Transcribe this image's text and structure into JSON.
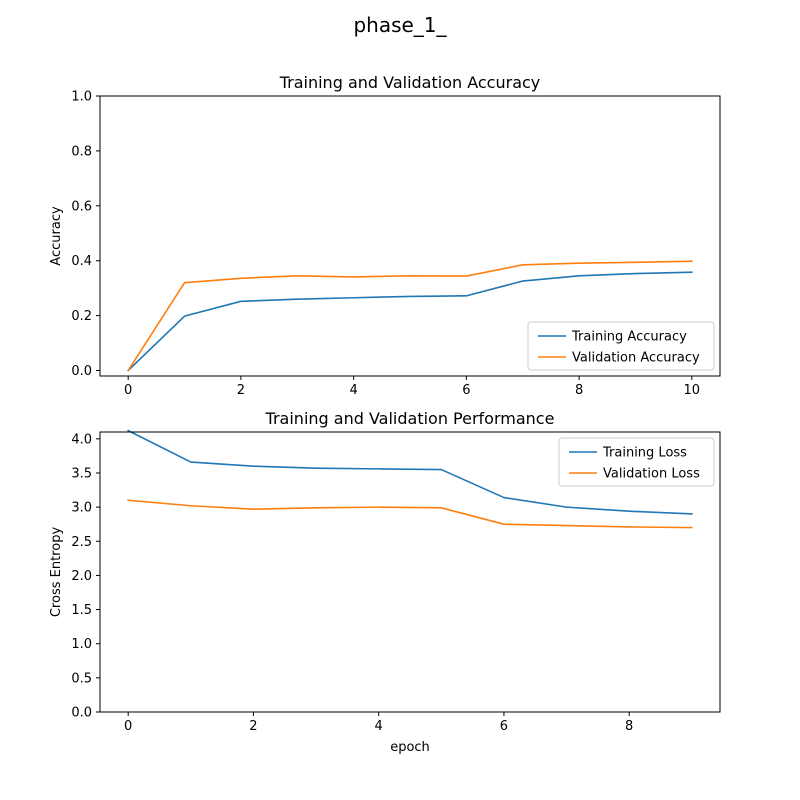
{
  "figure_title": "phase_1_",
  "colors": {
    "series_1": "#1f77b4",
    "series_2": "#ff7f0e",
    "axes": "#000000",
    "legend_border": "#cccccc"
  },
  "chart_data": [
    {
      "type": "line",
      "title": "Training and Validation Accuracy",
      "xlabel": "",
      "ylabel": "Accuracy",
      "xlim": [
        -0.5,
        10.5
      ],
      "ylim": [
        -0.02,
        1.0
      ],
      "xticks": [
        0,
        2,
        4,
        6,
        8,
        10
      ],
      "yticks": [
        0.0,
        0.2,
        0.4,
        0.6,
        0.8,
        1.0
      ],
      "ytick_labels": [
        "0.0",
        "0.2",
        "0.4",
        "0.6",
        "0.8",
        "1.0"
      ],
      "legend_position": "lower-right",
      "grid": false,
      "x": [
        0,
        1,
        2,
        3,
        4,
        5,
        6,
        7,
        8,
        9,
        10
      ],
      "series": [
        {
          "name": "Training Accuracy",
          "color": "#1f77b4",
          "values": [
            0.0,
            0.198,
            0.252,
            0.26,
            0.265,
            0.27,
            0.272,
            0.326,
            0.345,
            0.353,
            0.358
          ]
        },
        {
          "name": "Validation Accuracy",
          "color": "#ff7f0e",
          "values": [
            0.0,
            0.32,
            0.336,
            0.345,
            0.341,
            0.345,
            0.344,
            0.385,
            0.391,
            0.394,
            0.398
          ]
        }
      ]
    },
    {
      "type": "line",
      "title": "Training and Validation Performance",
      "xlabel": "epoch",
      "ylabel": "Cross Entropy",
      "xlim": [
        -0.45,
        9.45
      ],
      "ylim": [
        0.0,
        4.1
      ],
      "xticks": [
        0,
        2,
        4,
        6,
        8
      ],
      "yticks": [
        0.0,
        0.5,
        1.0,
        1.5,
        2.0,
        2.5,
        3.0,
        3.5,
        4.0
      ],
      "ytick_labels": [
        "0.0",
        "0.5",
        "1.0",
        "1.5",
        "2.0",
        "2.5",
        "3.0",
        "3.5",
        "4.0"
      ],
      "legend_position": "upper-right",
      "grid": false,
      "x": [
        0,
        1,
        2,
        3,
        4,
        5,
        6,
        7,
        8,
        9
      ],
      "series": [
        {
          "name": "Training Loss",
          "color": "#1f77b4",
          "values": [
            4.12,
            3.66,
            3.6,
            3.57,
            3.56,
            3.55,
            3.14,
            3.0,
            2.94,
            2.9
          ]
        },
        {
          "name": "Validation Loss",
          "color": "#ff7f0e",
          "values": [
            3.1,
            3.02,
            2.97,
            2.99,
            3.0,
            2.99,
            2.75,
            2.73,
            2.71,
            2.7
          ]
        }
      ]
    }
  ]
}
